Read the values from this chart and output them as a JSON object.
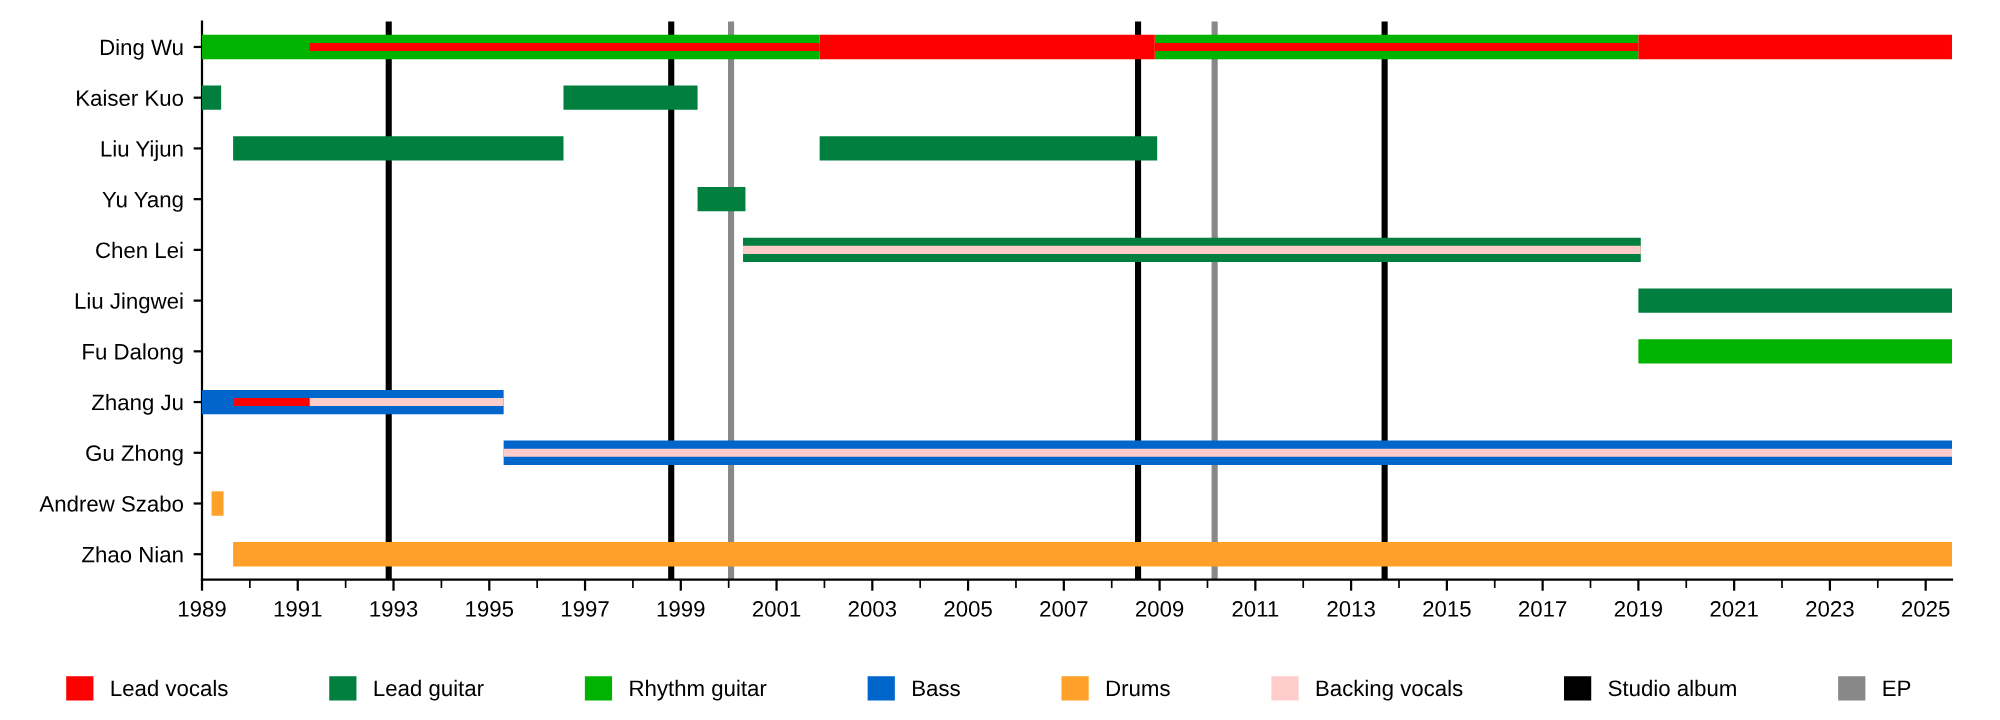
{
  "chart_data": {
    "type": "bar",
    "orientation": "horizontal",
    "categories": [
      "Ding Wu",
      "Kaiser Kuo",
      "Liu Yijun",
      "Yu Yang",
      "Chen Lei",
      "Liu Jingwei",
      "Fu Dalong",
      "Zhang Ju",
      "Gu Zhong",
      "Andrew Szabo",
      "Zhao Nian"
    ],
    "series": [
      {
        "name": "Lead vocals",
        "color": "#ff0000",
        "base": [
          1991.25,
          null,
          null,
          null,
          null,
          null,
          null,
          1989.67,
          null,
          null,
          null
        ],
        "values": [
          10.65,
          null,
          null,
          null,
          null,
          null,
          null,
          1.58,
          null,
          null,
          null
        ]
      },
      {
        "name": "Lead guitar",
        "color": "#007f3f",
        "base": [
          null,
          1989,
          1989.65,
          1999.35,
          2000.3,
          2019,
          null,
          null,
          null,
          null,
          null
        ],
        "values": [
          null,
          0.4,
          6.9,
          1.0,
          18.75,
          6.55,
          null,
          null,
          null,
          null,
          null
        ]
      },
      {
        "name": "Rhythm guitar",
        "color": "#00b300",
        "base": [
          1989,
          null,
          null,
          null,
          null,
          null,
          2019,
          null,
          null,
          null,
          null
        ],
        "values": [
          12.9,
          null,
          null,
          null,
          null,
          null,
          6.55,
          null,
          null,
          null,
          null
        ]
      },
      {
        "name": "Bass",
        "color": "#0066cc",
        "base": [
          null,
          null,
          null,
          null,
          null,
          null,
          null,
          1989,
          1995.3,
          null,
          null
        ],
        "values": [
          null,
          null,
          null,
          null,
          null,
          null,
          null,
          6.3,
          30.25,
          null,
          null
        ]
      },
      {
        "name": "Drums",
        "color": "#ffa02a",
        "base": [
          null,
          null,
          null,
          null,
          null,
          null,
          null,
          null,
          null,
          1989.2,
          1989.65
        ],
        "values": [
          null,
          null,
          null,
          null,
          null,
          null,
          null,
          null,
          null,
          0.25,
          35.9
        ]
      },
      {
        "name": "Backing vocals",
        "color": "#ffcccc",
        "base": [
          null,
          null,
          null,
          null,
          2000.3,
          null,
          null,
          1991.25,
          1995.3,
          null,
          null
        ],
        "values": [
          null,
          null,
          null,
          null,
          18.75,
          null,
          null,
          4.05,
          30.25,
          null,
          null
        ]
      },
      {
        "color": "#00b300",
        "base": [
          2008.9,
          null,
          null,
          null,
          null,
          null,
          null,
          null,
          null,
          null,
          null
        ],
        "values": [
          10.1,
          null,
          null,
          null,
          null,
          null,
          null,
          null,
          null,
          null,
          null
        ]
      },
      {
        "color": "#ff0000",
        "base": [
          2001.9,
          null,
          null,
          null,
          null,
          null,
          null,
          null,
          null,
          null,
          null
        ],
        "values": [
          7.0,
          null,
          null,
          null,
          null,
          null,
          null,
          null,
          null,
          null,
          null
        ]
      },
      {
        "color": "#ff0000",
        "base": [
          2008.9,
          null,
          null,
          null,
          null,
          null,
          null,
          null,
          null,
          null,
          null
        ],
        "values": [
          10.1,
          null,
          null,
          null,
          null,
          null,
          null,
          null,
          null,
          null,
          null
        ]
      },
      {
        "color": "#ff0000",
        "base": [
          2019,
          null,
          null,
          null,
          null,
          null,
          null,
          null,
          null,
          null,
          null
        ],
        "values": [
          6.55,
          null,
          null,
          null,
          null,
          null,
          null,
          null,
          null,
          null,
          null
        ]
      },
      {
        "color": "#007f3f",
        "base": [
          null,
          1996.55,
          2001.9,
          null,
          null,
          null,
          null,
          null,
          null,
          null,
          null
        ],
        "values": [
          null,
          2.8,
          7.05,
          null,
          null,
          null,
          null,
          null,
          null,
          null,
          null
        ]
      }
    ],
    "ref_lines": [
      {
        "axis": "x",
        "value": 1992.9,
        "label": "Studio album",
        "color": "#000000"
      },
      {
        "axis": "x",
        "value": 1998.8,
        "color": "#000000"
      },
      {
        "axis": "x",
        "value": 2008.55,
        "color": "#000000"
      },
      {
        "axis": "x",
        "value": 2013.7,
        "color": "#000000"
      },
      {
        "axis": "x",
        "value": 2000.05,
        "label": "EP",
        "color": "#888888"
      },
      {
        "axis": "x",
        "value": 2010.15,
        "color": "#888888"
      }
    ],
    "xlim": [
      1989,
      2025.55
    ],
    "xticks": [
      1989,
      1991,
      1993,
      1995,
      1997,
      1999,
      2001,
      2003,
      2005,
      2007,
      2009,
      2011,
      2013,
      2015,
      2017,
      2019,
      2021,
      2023,
      2025
    ],
    "grid": false,
    "legend": "bottom"
  }
}
